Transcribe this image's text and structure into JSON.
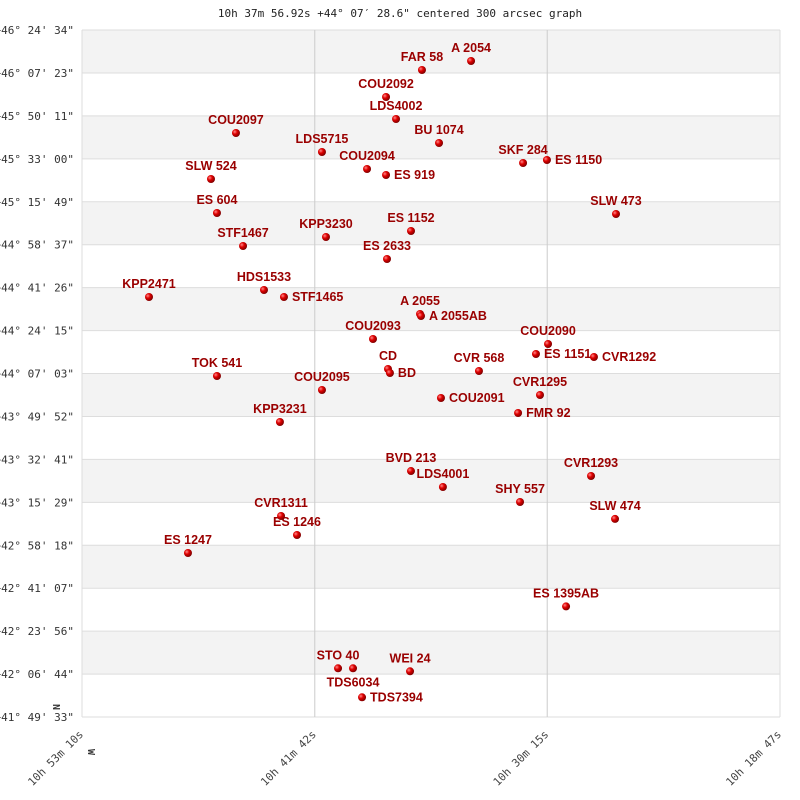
{
  "chart_data": {
    "type": "scatter",
    "title": "10h 37m 56.92s +44° 07′ 28.6\" centered 300 arcsec graph",
    "x_axis": {
      "quantity": "right ascension (hours)",
      "range": [
        10.88611,
        10.31306
      ],
      "reversed": true,
      "ticks": [
        {
          "value": 10.88611,
          "label": "10h 53m 10s"
        },
        {
          "value": 10.695,
          "label": "10h 41m 42s"
        },
        {
          "value": 10.50417,
          "label": "10h 30m 15s"
        },
        {
          "value": 10.31306,
          "label": "10h 18m 47s"
        }
      ]
    },
    "y_axis": {
      "quantity": "declination (degrees)",
      "range": [
        41.82583,
        46.40944
      ],
      "ticks": [
        "+46° 24' 34\"",
        "+46° 07' 23\"",
        "+45° 50' 11\"",
        "+45° 33' 00\"",
        "+45° 15' 49\"",
        "+44° 58' 37\"",
        "+44° 41' 26\"",
        "+44° 24' 15\"",
        "+44° 07' 03\"",
        "+43° 49' 52\"",
        "+43° 32' 41\"",
        "+43° 15' 29\"",
        "+42° 58' 18\"",
        "+42° 41' 07\"",
        "+42° 23' 56\"",
        "+42° 06' 44\"",
        "+41° 49' 33\""
      ]
    },
    "direction_markers": {
      "north": "N",
      "west": "W"
    },
    "grid": true,
    "banded_background": true,
    "colors": {
      "point": "#dd0000",
      "label": "#9a0000",
      "band": "#f3f3f3",
      "grid": "#dddddd"
    },
    "points": [
      {
        "name": "A  2054",
        "ra": 10.5667,
        "dec": 46.2026
      },
      {
        "name": "FAR  58",
        "ra": 10.607,
        "dec": 46.1426
      },
      {
        "name": "COU2092",
        "ra": 10.6365,
        "dec": 45.9624
      },
      {
        "name": "LDS4002",
        "ra": 10.6283,
        "dec": 45.8156
      },
      {
        "name": "COU2097",
        "ra": 10.7597,
        "dec": 45.7222
      },
      {
        "name": "LDS5715",
        "ra": 10.6891,
        "dec": 45.5955
      },
      {
        "name": "BU 1074",
        "ra": 10.593,
        "dec": 45.6555
      },
      {
        "name": "COU2094",
        "ra": 10.6521,
        "dec": 45.482
      },
      {
        "name": "ES  919",
        "ra": 10.6365,
        "dec": 45.442
      },
      {
        "name": "SKF 284",
        "ra": 10.524,
        "dec": 45.5221
      },
      {
        "name": "ES 1150",
        "ra": 10.5044,
        "dec": 45.5421
      },
      {
        "name": "SLW 524",
        "ra": 10.7802,
        "dec": 45.4153
      },
      {
        "name": "ES  604",
        "ra": 10.7753,
        "dec": 45.1885
      },
      {
        "name": "SLW 473",
        "ra": 10.4477,
        "dec": 45.1818
      },
      {
        "name": "KPP3230",
        "ra": 10.6858,
        "dec": 45.0283
      },
      {
        "name": "ES 1152",
        "ra": 10.616,
        "dec": 45.0684
      },
      {
        "name": "STF1467",
        "ra": 10.7539,
        "dec": 44.9683
      },
      {
        "name": "ES 2633",
        "ra": 10.6357,
        "dec": 44.8816
      },
      {
        "name": "KPP2471",
        "ra": 10.8311,
        "dec": 44.628
      },
      {
        "name": "HDS1533",
        "ra": 10.7367,
        "dec": 44.6747
      },
      {
        "name": "STF1465",
        "ra": 10.7203,
        "dec": 44.628
      },
      {
        "name": "A  2055",
        "ra": 10.6086,
        "dec": 44.5146
      },
      {
        "name": "A  2055AB",
        "ra": 10.6078,
        "dec": 44.5012
      },
      {
        "name": "COU2093",
        "ra": 10.6472,
        "dec": 44.3478
      },
      {
        "name": "COU2090",
        "ra": 10.5035,
        "dec": 44.3144
      },
      {
        "name": "ES 1151",
        "ra": 10.5134,
        "dec": 44.2477
      },
      {
        "name": "CVR1292",
        "ra": 10.4658,
        "dec": 44.2277
      },
      {
        "name": "CD",
        "ra": 10.6349,
        "dec": 44.1476
      },
      {
        "name": "BD",
        "ra": 10.6333,
        "dec": 44.121
      },
      {
        "name": "TOK 541",
        "ra": 10.7753,
        "dec": 44.1009
      },
      {
        "name": "CVR 568",
        "ra": 10.5602,
        "dec": 44.1343
      },
      {
        "name": "COU2095",
        "ra": 10.6891,
        "dec": 44.0075
      },
      {
        "name": "COU2091",
        "ra": 10.5914,
        "dec": 43.9541
      },
      {
        "name": "CVR1295",
        "ra": 10.5101,
        "dec": 43.9741
      },
      {
        "name": "FMR  92",
        "ra": 10.5281,
        "dec": 43.854
      },
      {
        "name": "KPP3231",
        "ra": 10.7236,
        "dec": 43.794
      },
      {
        "name": "BVD 213",
        "ra": 10.616,
        "dec": 43.467
      },
      {
        "name": "LDS4001",
        "ra": 10.5898,
        "dec": 43.3603
      },
      {
        "name": "CVR1293",
        "ra": 10.4682,
        "dec": 43.4337
      },
      {
        "name": "SHY 557",
        "ra": 10.5265,
        "dec": 43.2602
      },
      {
        "name": "SLW 474",
        "ra": 10.4485,
        "dec": 43.1475
      },
      {
        "name": "CVR1311",
        "ra": 10.7227,
        "dec": 43.1669
      },
      {
        "name": "ES 1246",
        "ra": 10.7096,
        "dec": 43.0401
      },
      {
        "name": "ES 1247",
        "ra": 10.7991,
        "dec": 42.92
      },
      {
        "name": "ES 1395AB",
        "ra": 10.4887,
        "dec": 42.5637
      },
      {
        "name": "STO  40",
        "ra": 10.6759,
        "dec": 42.1507
      },
      {
        "name": "TDS6034",
        "ra": 10.6636,
        "dec": 42.1507
      },
      {
        "name": "WEI  24",
        "ra": 10.6168,
        "dec": 42.1307
      },
      {
        "name": "TDS7394",
        "ra": 10.6562,
        "dec": 41.9572
      }
    ]
  }
}
